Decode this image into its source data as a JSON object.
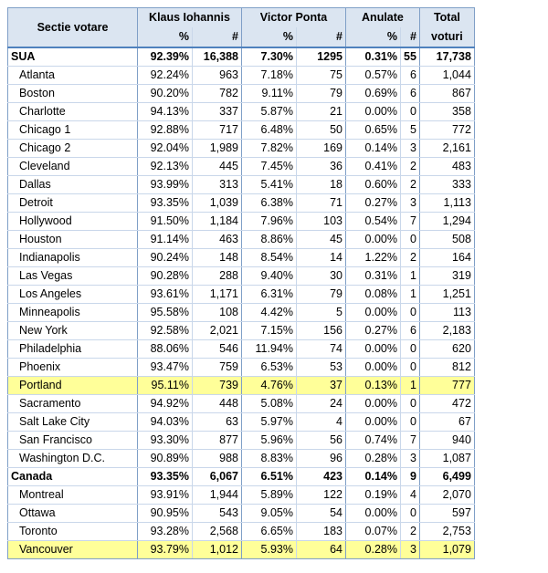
{
  "header": {
    "sectie": "Sectie votare",
    "iohannis": "Klaus Iohannis",
    "ponta": "Victor Ponta",
    "anulate": "Anulate",
    "total_line1": "Total",
    "total_line2": "voturi",
    "pct": "%",
    "num": "#"
  },
  "rows": [
    {
      "name": "SUA",
      "type": "country",
      "ki_pct": "92.39%",
      "ki_n": "16,388",
      "vp_pct": "7.30%",
      "vp_n": "1295",
      "an_pct": "0.31%",
      "an_n": "55",
      "total": "17,738"
    },
    {
      "name": "Atlanta",
      "type": "city",
      "ki_pct": "92.24%",
      "ki_n": "963",
      "vp_pct": "7.18%",
      "vp_n": "75",
      "an_pct": "0.57%",
      "an_n": "6",
      "total": "1,044"
    },
    {
      "name": "Boston",
      "type": "city",
      "ki_pct": "90.20%",
      "ki_n": "782",
      "vp_pct": "9.11%",
      "vp_n": "79",
      "an_pct": "0.69%",
      "an_n": "6",
      "total": "867"
    },
    {
      "name": "Charlotte",
      "type": "city",
      "ki_pct": "94.13%",
      "ki_n": "337",
      "vp_pct": "5.87%",
      "vp_n": "21",
      "an_pct": "0.00%",
      "an_n": "0",
      "total": "358"
    },
    {
      "name": "Chicago 1",
      "type": "city",
      "ki_pct": "92.88%",
      "ki_n": "717",
      "vp_pct": "6.48%",
      "vp_n": "50",
      "an_pct": "0.65%",
      "an_n": "5",
      "total": "772"
    },
    {
      "name": "Chicago 2",
      "type": "city",
      "ki_pct": "92.04%",
      "ki_n": "1,989",
      "vp_pct": "7.82%",
      "vp_n": "169",
      "an_pct": "0.14%",
      "an_n": "3",
      "total": "2,161"
    },
    {
      "name": "Cleveland",
      "type": "city",
      "ki_pct": "92.13%",
      "ki_n": "445",
      "vp_pct": "7.45%",
      "vp_n": "36",
      "an_pct": "0.41%",
      "an_n": "2",
      "total": "483"
    },
    {
      "name": "Dallas",
      "type": "city",
      "ki_pct": "93.99%",
      "ki_n": "313",
      "vp_pct": "5.41%",
      "vp_n": "18",
      "an_pct": "0.60%",
      "an_n": "2",
      "total": "333"
    },
    {
      "name": "Detroit",
      "type": "city",
      "ki_pct": "93.35%",
      "ki_n": "1,039",
      "vp_pct": "6.38%",
      "vp_n": "71",
      "an_pct": "0.27%",
      "an_n": "3",
      "total": "1,113"
    },
    {
      "name": "Hollywood",
      "type": "city",
      "ki_pct": "91.50%",
      "ki_n": "1,184",
      "vp_pct": "7.96%",
      "vp_n": "103",
      "an_pct": "0.54%",
      "an_n": "7",
      "total": "1,294"
    },
    {
      "name": "Houston",
      "type": "city",
      "ki_pct": "91.14%",
      "ki_n": "463",
      "vp_pct": "8.86%",
      "vp_n": "45",
      "an_pct": "0.00%",
      "an_n": "0",
      "total": "508"
    },
    {
      "name": "Indianapolis",
      "type": "city",
      "ki_pct": "90.24%",
      "ki_n": "148",
      "vp_pct": "8.54%",
      "vp_n": "14",
      "an_pct": "1.22%",
      "an_n": "2",
      "total": "164"
    },
    {
      "name": "Las Vegas",
      "type": "city",
      "ki_pct": "90.28%",
      "ki_n": "288",
      "vp_pct": "9.40%",
      "vp_n": "30",
      "an_pct": "0.31%",
      "an_n": "1",
      "total": "319"
    },
    {
      "name": "Los Angeles",
      "type": "city",
      "ki_pct": "93.61%",
      "ki_n": "1,171",
      "vp_pct": "6.31%",
      "vp_n": "79",
      "an_pct": "0.08%",
      "an_n": "1",
      "total": "1,251"
    },
    {
      "name": "Minneapolis",
      "type": "city",
      "ki_pct": "95.58%",
      "ki_n": "108",
      "vp_pct": "4.42%",
      "vp_n": "5",
      "an_pct": "0.00%",
      "an_n": "0",
      "total": "113"
    },
    {
      "name": "New York",
      "type": "city",
      "ki_pct": "92.58%",
      "ki_n": "2,021",
      "vp_pct": "7.15%",
      "vp_n": "156",
      "an_pct": "0.27%",
      "an_n": "6",
      "total": "2,183"
    },
    {
      "name": "Philadelphia",
      "type": "city",
      "ki_pct": "88.06%",
      "ki_n": "546",
      "vp_pct": "11.94%",
      "vp_n": "74",
      "an_pct": "0.00%",
      "an_n": "0",
      "total": "620"
    },
    {
      "name": "Phoenix",
      "type": "city",
      "ki_pct": "93.47%",
      "ki_n": "759",
      "vp_pct": "6.53%",
      "vp_n": "53",
      "an_pct": "0.00%",
      "an_n": "0",
      "total": "812"
    },
    {
      "name": "Portland",
      "type": "city",
      "highlight": true,
      "ki_pct": "95.11%",
      "ki_n": "739",
      "vp_pct": "4.76%",
      "vp_n": "37",
      "an_pct": "0.13%",
      "an_n": "1",
      "total": "777"
    },
    {
      "name": "Sacramento",
      "type": "city",
      "ki_pct": "94.92%",
      "ki_n": "448",
      "vp_pct": "5.08%",
      "vp_n": "24",
      "an_pct": "0.00%",
      "an_n": "0",
      "total": "472"
    },
    {
      "name": "Salt Lake City",
      "type": "city",
      "ki_pct": "94.03%",
      "ki_n": "63",
      "vp_pct": "5.97%",
      "vp_n": "4",
      "an_pct": "0.00%",
      "an_n": "0",
      "total": "67"
    },
    {
      "name": "San Francisco",
      "type": "city",
      "ki_pct": "93.30%",
      "ki_n": "877",
      "vp_pct": "5.96%",
      "vp_n": "56",
      "an_pct": "0.74%",
      "an_n": "7",
      "total": "940"
    },
    {
      "name": "Washington D.C.",
      "type": "city",
      "ki_pct": "90.89%",
      "ki_n": "988",
      "vp_pct": "8.83%",
      "vp_n": "96",
      "an_pct": "0.28%",
      "an_n": "3",
      "total": "1,087"
    },
    {
      "name": "Canada",
      "type": "country",
      "ki_pct": "93.35%",
      "ki_n": "6,067",
      "vp_pct": "6.51%",
      "vp_n": "423",
      "an_pct": "0.14%",
      "an_n": "9",
      "total": "6,499"
    },
    {
      "name": "Montreal",
      "type": "city",
      "ki_pct": "93.91%",
      "ki_n": "1,944",
      "vp_pct": "5.89%",
      "vp_n": "122",
      "an_pct": "0.19%",
      "an_n": "4",
      "total": "2,070"
    },
    {
      "name": "Ottawa",
      "type": "city",
      "ki_pct": "90.95%",
      "ki_n": "543",
      "vp_pct": "9.05%",
      "vp_n": "54",
      "an_pct": "0.00%",
      "an_n": "0",
      "total": "597"
    },
    {
      "name": "Toronto",
      "type": "city",
      "ki_pct": "93.28%",
      "ki_n": "2,568",
      "vp_pct": "6.65%",
      "vp_n": "183",
      "an_pct": "0.07%",
      "an_n": "2",
      "total": "2,753"
    },
    {
      "name": "Vancouver",
      "type": "city",
      "highlight": true,
      "ki_pct": "93.79%",
      "ki_n": "1,012",
      "vp_pct": "5.93%",
      "vp_n": "64",
      "an_pct": "0.28%",
      "an_n": "3",
      "total": "1,079"
    }
  ],
  "colors": {
    "header_bg": "#dbe5f1",
    "highlight_bg": "#ffff99",
    "border_accent": "#4f81bd"
  }
}
